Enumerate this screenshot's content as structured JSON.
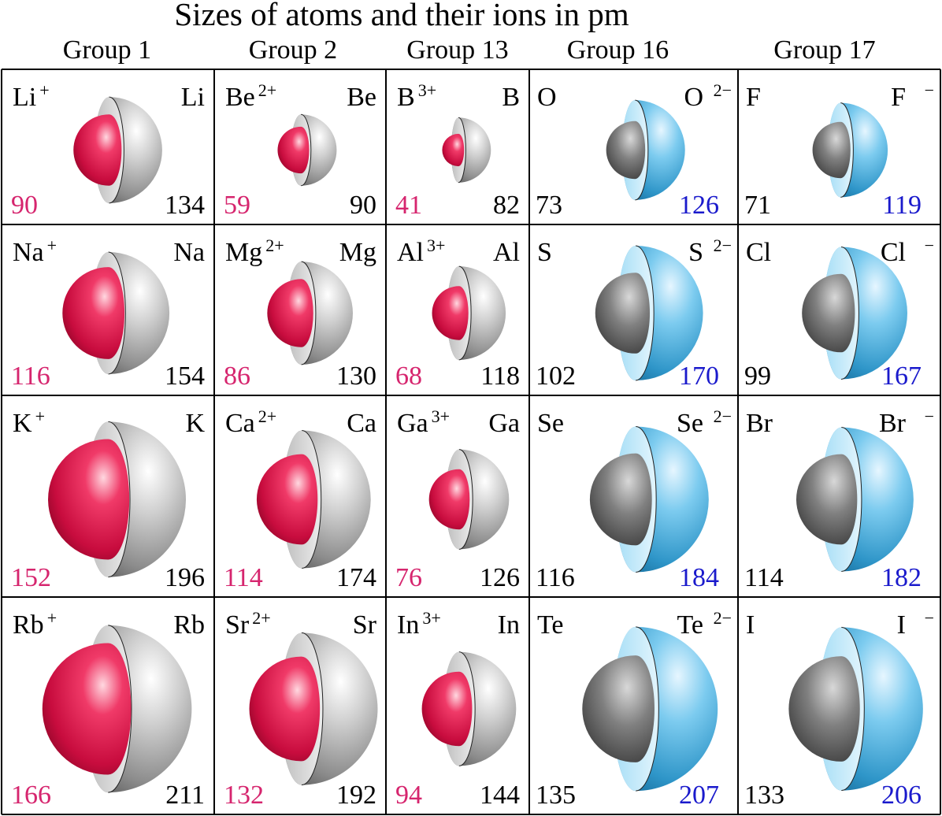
{
  "title": "Sizes of atoms and their ions in pm",
  "groups": [
    "Group 1",
    "Group 2",
    "Group 13",
    "Group 16",
    "Group 17"
  ],
  "colors": {
    "cation": "#e8164f",
    "neutral": "#9a9a9a",
    "anion": "#4aaedc",
    "cation_text": "#d6256e",
    "anion_text": "#1a1acc"
  },
  "rows": [
    [
      {
        "type": "metal",
        "ion": "Li",
        "charge": "+",
        "atom": "Li",
        "ion_r": 90,
        "atom_r": 134
      },
      {
        "type": "metal",
        "ion": "Be",
        "charge": "2+",
        "atom": "Be",
        "ion_r": 59,
        "atom_r": 90
      },
      {
        "type": "metal",
        "ion": "B",
        "charge": "3+",
        "atom": "B",
        "ion_r": 41,
        "atom_r": 82
      },
      {
        "type": "nonmetal",
        "atom": "O",
        "ion": "O",
        "charge": "2−",
        "atom_r": 73,
        "ion_r": 126
      },
      {
        "type": "nonmetal",
        "atom": "F",
        "ion": "F",
        "charge": "−",
        "atom_r": 71,
        "ion_r": 119
      }
    ],
    [
      {
        "type": "metal",
        "ion": "Na",
        "charge": "+",
        "atom": "Na",
        "ion_r": 116,
        "atom_r": 154
      },
      {
        "type": "metal",
        "ion": "Mg",
        "charge": "2+",
        "atom": "Mg",
        "ion_r": 86,
        "atom_r": 130
      },
      {
        "type": "metal",
        "ion": "Al",
        "charge": "3+",
        "atom": "Al",
        "ion_r": 68,
        "atom_r": 118
      },
      {
        "type": "nonmetal",
        "atom": "S",
        "ion": "S",
        "charge": "2−",
        "atom_r": 102,
        "ion_r": 170
      },
      {
        "type": "nonmetal",
        "atom": "Cl",
        "ion": "Cl",
        "charge": "−",
        "atom_r": 99,
        "ion_r": 167
      }
    ],
    [
      {
        "type": "metal",
        "ion": "K",
        "charge": "+",
        "atom": "K",
        "ion_r": 152,
        "atom_r": 196
      },
      {
        "type": "metal",
        "ion": "Ca",
        "charge": "2+",
        "atom": "Ca",
        "ion_r": 114,
        "atom_r": 174
      },
      {
        "type": "metal",
        "ion": "Ga",
        "charge": "3+",
        "atom": "Ga",
        "ion_r": 76,
        "atom_r": 126
      },
      {
        "type": "nonmetal",
        "atom": "Se",
        "ion": "Se",
        "charge": "2−",
        "atom_r": 116,
        "ion_r": 184
      },
      {
        "type": "nonmetal",
        "atom": "Br",
        "ion": "Br",
        "charge": "−",
        "atom_r": 114,
        "ion_r": 182
      }
    ],
    [
      {
        "type": "metal",
        "ion": "Rb",
        "charge": "+",
        "atom": "Rb",
        "ion_r": 166,
        "atom_r": 211
      },
      {
        "type": "metal",
        "ion": "Sr",
        "charge": "2+",
        "atom": "Sr",
        "ion_r": 132,
        "atom_r": 192
      },
      {
        "type": "metal",
        "ion": "In",
        "charge": "3+",
        "atom": "In",
        "ion_r": 94,
        "atom_r": 144
      },
      {
        "type": "nonmetal",
        "atom": "Te",
        "ion": "Te",
        "charge": "2−",
        "atom_r": 135,
        "ion_r": 207
      },
      {
        "type": "nonmetal",
        "atom": "I",
        "ion": "I",
        "charge": "−",
        "atom_r": 133,
        "ion_r": 206
      }
    ]
  ]
}
